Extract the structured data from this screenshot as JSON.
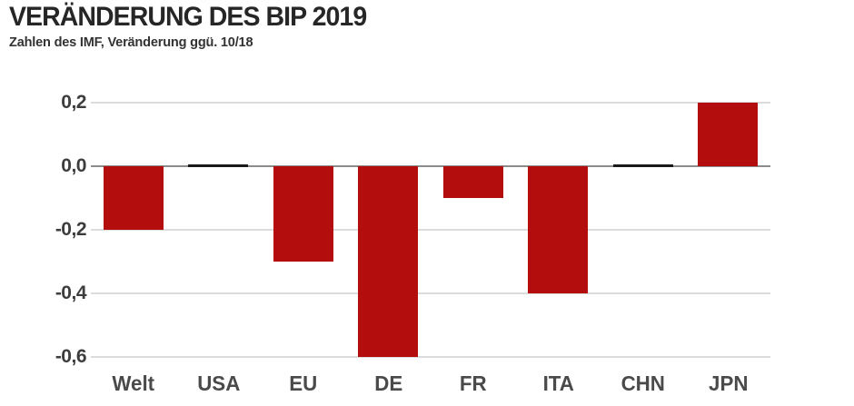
{
  "header": {
    "title": "VERÄNDERUNG DES BIP 2019",
    "subtitle": "Zahlen des IMF, Veränderung ggü. 10/18"
  },
  "colors": {
    "bar": "#b30d0d",
    "zero_value_bar": "#1a1a1a",
    "gridline": "#dcdcdc",
    "zero_line": "#8c8c8c",
    "title_text": "#262626",
    "axis_text": "#4a4a4a"
  },
  "chart_data": {
    "type": "bar",
    "title": "VERÄNDERUNG DES BIP 2019",
    "subtitle": "Zahlen des IMF, Veränderung ggü. 10/18",
    "categories": [
      "Welt",
      "USA",
      "EU",
      "DE",
      "FR",
      "ITA",
      "CHN",
      "JPN"
    ],
    "values": [
      -0.2,
      0.0,
      -0.3,
      -0.6,
      -0.1,
      -0.4,
      0.0,
      0.2
    ],
    "xlabel": "",
    "ylabel": "",
    "ylim": [
      -0.65,
      0.3
    ],
    "yticks": {
      "values": [
        0.2,
        0.0,
        -0.2,
        -0.4,
        -0.6
      ],
      "labels": [
        "0,2",
        "0,0",
        "-0,2",
        "-0,4",
        "-0,6"
      ]
    },
    "grid": true,
    "legend": false,
    "decimal_style": "german-comma",
    "zero_value_rendering": "flat black segment on baseline"
  }
}
